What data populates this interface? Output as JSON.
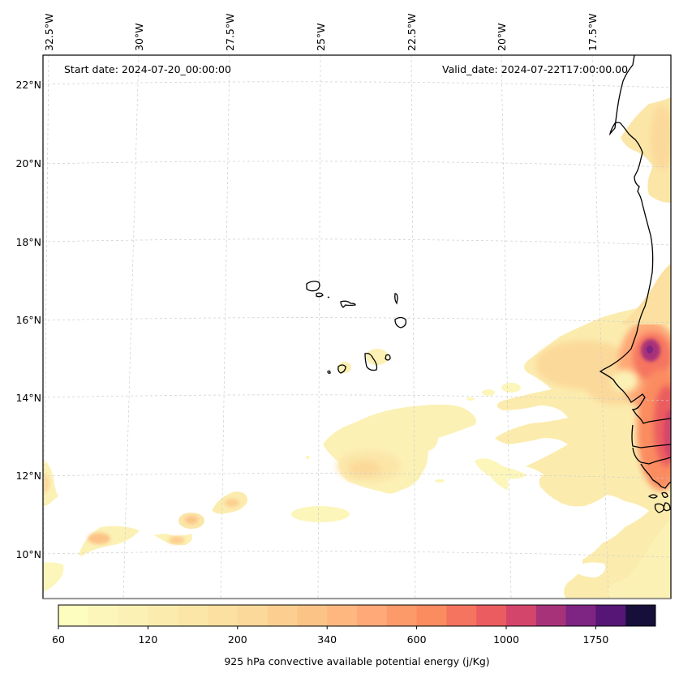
{
  "map": {
    "start_date_text": "Start date: 2024-07-20_00:00:00",
    "valid_date_text": "Valid_date: 2024-07-22T17:00:00.00",
    "longitude_labels": [
      "32.5°W",
      "30°W",
      "27.5°W",
      "25°W",
      "22.5°W",
      "20°W",
      "17.5°W"
    ],
    "latitude_labels": [
      "22°N",
      "20°N",
      "18°N",
      "16°N",
      "14°N",
      "12°N",
      "10°N"
    ],
    "gridlines": true,
    "coastline_color": "#000000",
    "features": [
      "Cape Verde islands",
      "West African coastline (Mauritania, Senegal, Gambia, Guinea-Bissau)"
    ]
  },
  "colorbar": {
    "label": "925 hPa convective available potential energy (j/Kg)",
    "tick_labels": [
      "60",
      "120",
      "200",
      "340",
      "600",
      "1000",
      "1750"
    ],
    "tick_bin_index": [
      0,
      3,
      6,
      9,
      12,
      15,
      18
    ],
    "colors": [
      "#fcfdbf",
      "#fcf6bb",
      "#fcf1b5",
      "#fbecae",
      "#fbe6a8",
      "#fbe0a1",
      "#fbd99a",
      "#fccf90",
      "#fcc387",
      "#feb87f",
      "#fea977",
      "#fd9a6a",
      "#fb8c60",
      "#f57460",
      "#ea5c5f",
      "#d4456c",
      "#a73279",
      "#7e2482",
      "#561676",
      "#150f3a"
    ]
  },
  "chart_data": {
    "type": "heatmap",
    "title": "",
    "left_annotation": "Start date: 2024-07-20_00:00:00",
    "right_annotation": "Valid_date: 2024-07-22T17:00:00.00",
    "variable": "925 hPa convective available potential energy (j/Kg)",
    "x_axis": {
      "label": "longitude",
      "ticks": [
        "32.5°W",
        "30°W",
        "27.5°W",
        "25°W",
        "22.5°W",
        "20°W",
        "17.5°W"
      ],
      "range_deg": [
        -32.7,
        -16.0
      ]
    },
    "y_axis": {
      "label": "latitude",
      "ticks": [
        "22°N",
        "20°N",
        "18°N",
        "16°N",
        "14°N",
        "12°N",
        "10°N"
      ],
      "range_deg": [
        9.1,
        22.8
      ]
    },
    "colorbar_ticks": [
      60,
      120,
      200,
      340,
      600,
      1000,
      1750
    ],
    "colormap": "magma_r",
    "colorbar_range": [
      60,
      2000
    ],
    "regions": [
      {
        "name": "Senegal interior maximum",
        "lon": -16.9,
        "lat": 15.2,
        "approx_value": 1750
      },
      {
        "name": "Guinea-Bissau/Gambia inland",
        "lon": -16.1,
        "lat": 12.7,
        "approx_value": 1000
      },
      {
        "name": "Plume west of Senegal",
        "lon": -19.5,
        "lat": 14.8,
        "approx_value": 200
      },
      {
        "name": "Blob south of Cape Verde",
        "lon": -23.5,
        "lat": 12.2,
        "approx_value": 200
      },
      {
        "name": "Small cells near 10-11N",
        "lon": -30.0,
        "lat": 10.5,
        "approx_value": 340
      },
      {
        "name": "Cells near 28N 11N",
        "lon": -27.5,
        "lat": 10.9,
        "approx_value": 340
      },
      {
        "name": "Western edge 12N",
        "lon": -32.5,
        "lat": 11.9,
        "approx_value": 200
      },
      {
        "name": "Mauritania inland",
        "lon": -16.2,
        "lat": 21.0,
        "approx_value": 200
      }
    ]
  }
}
